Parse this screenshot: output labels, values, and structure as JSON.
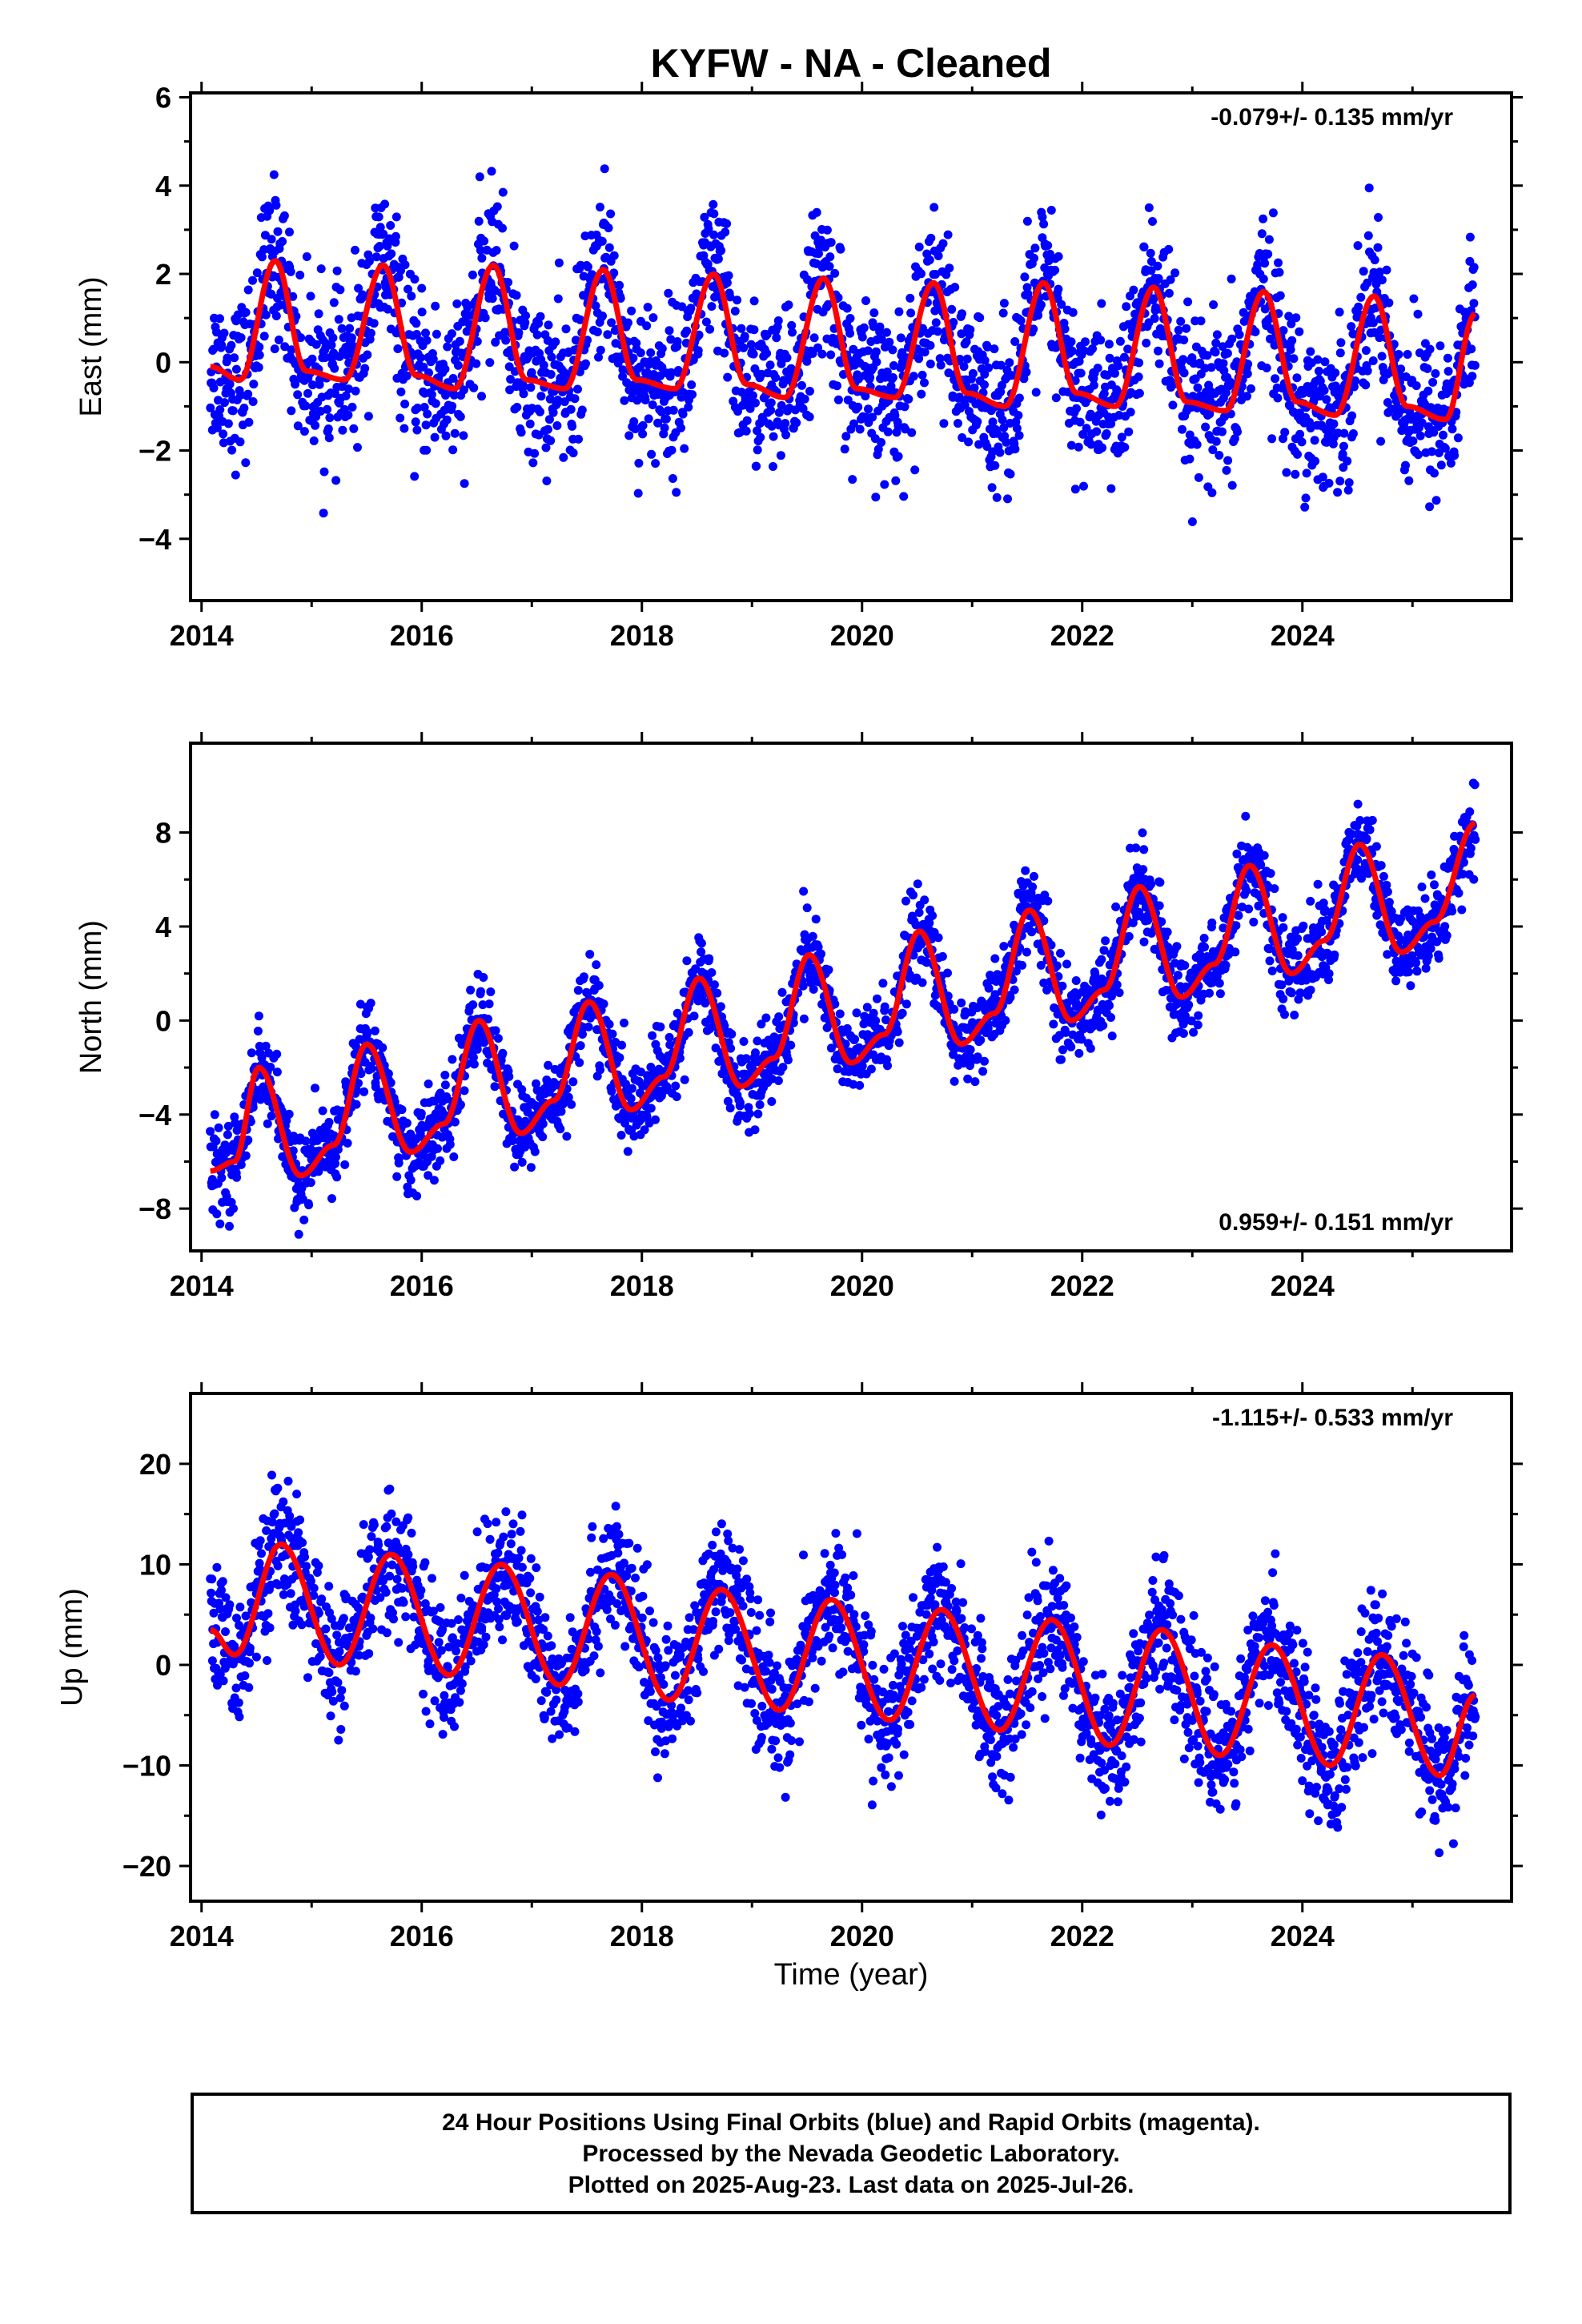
{
  "title": "KYFW  - NA - Cleaned",
  "xlabel": "Time (year)",
  "footer": {
    "line1": "24 Hour Positions Using Final Orbits (blue) and Rapid Orbits (magenta).",
    "line2": "Processed by the Nevada Geodetic Laboratory.",
    "line3": "Plotted on 2025-Aug-23. Last data on 2025-Jul-26."
  },
  "colors": {
    "points": "#0000ff",
    "fit": "#ff0000"
  },
  "chart_data": [
    {
      "type": "scatter",
      "id": "east",
      "ylabel": "East (mm)",
      "rate_label": "-0.079+/- 0.135 mm/yr",
      "rate_position": "top-right",
      "xlim": [
        2013.9,
        2025.9
      ],
      "ylim": [
        -5.4,
        6.1
      ],
      "xticks": [
        "2014",
        "2016",
        "2018",
        "2020",
        "2022",
        "2024"
      ],
      "xtick_values": [
        2014,
        2016,
        2018,
        2020,
        2022,
        2024
      ],
      "yticks": [
        "−4",
        "−2",
        "0",
        "2",
        "4",
        "6"
      ],
      "ytick_values": [
        -4,
        -2,
        0,
        2,
        4,
        6
      ],
      "data_span": [
        2014.08,
        2025.57
      ],
      "series": [
        {
          "kind": "fit",
          "x": [
            2014.08,
            2014.35,
            2014.67,
            2014.95,
            2015.3,
            2015.65,
            2015.95,
            2016.3,
            2016.65,
            2016.95,
            2017.3,
            2017.65,
            2017.95,
            2018.3,
            2018.65,
            2018.95,
            2019.3,
            2019.65,
            2019.95,
            2020.3,
            2020.65,
            2020.95,
            2021.3,
            2021.65,
            2021.95,
            2022.3,
            2022.65,
            2022.95,
            2023.3,
            2023.65,
            2023.95,
            2024.3,
            2024.65,
            2024.95,
            2025.3,
            2025.57
          ],
          "y": [
            -0.1,
            -0.4,
            2.3,
            -0.2,
            -0.4,
            2.2,
            -0.3,
            -0.6,
            2.2,
            -0.4,
            -0.6,
            2.1,
            -0.4,
            -0.6,
            2.0,
            -0.5,
            -0.8,
            1.9,
            -0.6,
            -0.8,
            1.8,
            -0.7,
            -1.0,
            1.8,
            -0.7,
            -1.0,
            1.7,
            -0.9,
            -1.1,
            1.6,
            -0.9,
            -1.2,
            1.5,
            -1.0,
            -1.3,
            1.1
          ]
        }
      ],
      "scatter_stddev": 0.9
    },
    {
      "type": "scatter",
      "id": "north",
      "ylabel": "North (mm)",
      "rate_label": "0.959+/- 0.151 mm/yr",
      "rate_position": "bottom-right",
      "xlim": [
        2013.9,
        2025.9
      ],
      "ylim": [
        -9.8,
        11.8
      ],
      "xticks": [
        "2014",
        "2016",
        "2018",
        "2020",
        "2022",
        "2024"
      ],
      "xtick_values": [
        2014,
        2016,
        2018,
        2020,
        2022,
        2024
      ],
      "yticks": [
        "−8",
        "−4",
        "0",
        "4",
        "8"
      ],
      "ytick_values": [
        -8,
        -4,
        0,
        4,
        8
      ],
      "data_span": [
        2014.08,
        2025.57
      ],
      "series": [
        {
          "kind": "fit",
          "x": [
            2014.08,
            2014.3,
            2014.52,
            2014.9,
            2015.2,
            2015.5,
            2015.9,
            2016.2,
            2016.52,
            2016.9,
            2017.2,
            2017.52,
            2017.9,
            2018.2,
            2018.52,
            2018.9,
            2019.2,
            2019.52,
            2019.9,
            2020.2,
            2020.52,
            2020.9,
            2021.2,
            2021.52,
            2021.9,
            2022.2,
            2022.52,
            2022.9,
            2023.2,
            2023.52,
            2023.9,
            2024.2,
            2024.52,
            2024.9,
            2025.2,
            2025.57
          ],
          "y": [
            -6.4,
            -6.0,
            -2.0,
            -6.6,
            -5.3,
            -1.0,
            -5.6,
            -4.4,
            0.0,
            -4.8,
            -3.4,
            0.8,
            -3.8,
            -2.4,
            1.8,
            -2.8,
            -1.6,
            2.8,
            -1.8,
            -0.6,
            3.8,
            -1.0,
            0.3,
            4.7,
            0.0,
            1.3,
            5.7,
            1.0,
            2.4,
            6.6,
            2.0,
            3.4,
            7.5,
            2.9,
            4.2,
            8.4
          ]
        }
      ],
      "scatter_stddev": 0.9
    },
    {
      "type": "scatter",
      "id": "up",
      "ylabel": "Up (mm)",
      "rate_label": "-1.115+/- 0.533 mm/yr",
      "rate_position": "top-right",
      "xlim": [
        2013.9,
        2025.9
      ],
      "ylim": [
        -23.5,
        27.0
      ],
      "xticks": [
        "2014",
        "2016",
        "2018",
        "2020",
        "2022",
        "2024"
      ],
      "xtick_values": [
        2014,
        2016,
        2018,
        2020,
        2022,
        2024
      ],
      "yticks": [
        "−20",
        "−10",
        "0",
        "10",
        "20"
      ],
      "ytick_values": [
        -20,
        -10,
        0,
        10,
        20
      ],
      "data_span": [
        2014.08,
        2025.57
      ],
      "series": [
        {
          "kind": "fit",
          "x": [
            2014.08,
            2014.3,
            2014.72,
            2015.25,
            2015.72,
            2016.25,
            2016.72,
            2017.25,
            2017.72,
            2018.25,
            2018.72,
            2019.25,
            2019.72,
            2020.25,
            2020.72,
            2021.25,
            2021.72,
            2022.25,
            2022.72,
            2023.25,
            2023.72,
            2024.25,
            2024.72,
            2025.25,
            2025.57
          ],
          "y": [
            3.5,
            1.0,
            12.0,
            0.0,
            11.0,
            -1.0,
            10.0,
            -2.0,
            9.0,
            -3.5,
            7.5,
            -4.5,
            6.5,
            -5.5,
            5.5,
            -6.5,
            4.5,
            -8.0,
            3.5,
            -9.0,
            2.0,
            -10.0,
            1.0,
            -11.0,
            -3.0
          ]
        }
      ],
      "scatter_stddev": 3.2
    }
  ]
}
